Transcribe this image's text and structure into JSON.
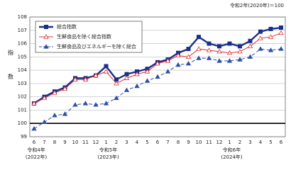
{
  "chart_data": {
    "type": "line",
    "note": "令和2年(2020年)＝100",
    "ylabel": "指数",
    "categories": [
      "6",
      "7",
      "8",
      "9",
      "10",
      "11",
      "12",
      "1",
      "2",
      "3",
      "4",
      "5",
      "6",
      "7",
      "8",
      "9",
      "10",
      "11",
      "12",
      "1",
      "2",
      "3",
      "4",
      "5",
      "6"
    ],
    "category_eras": [
      [
        "令和4年",
        "(2022年)"
      ],
      null,
      null,
      null,
      null,
      null,
      null,
      [
        "令和5年",
        "(2023年)"
      ],
      null,
      null,
      null,
      null,
      null,
      null,
      null,
      null,
      null,
      null,
      null,
      [
        "令和6年",
        "(2024年)"
      ],
      null,
      null,
      null,
      null,
      null
    ],
    "series": [
      {
        "name": "総合指数",
        "color": "#1a2f8a",
        "style": "solid",
        "width": 2.4,
        "marker": "square",
        "marker_fill": "#1a2f8a",
        "values": [
          101.5,
          102.0,
          102.4,
          102.7,
          103.4,
          103.4,
          103.6,
          104.3,
          103.3,
          103.7,
          103.9,
          104.1,
          104.6,
          104.8,
          105.3,
          105.6,
          106.5,
          106.0,
          105.8,
          106.0,
          105.8,
          106.2,
          106.9,
          107.1,
          107.2
        ]
      },
      {
        "name": "生鮮食品を除く総合指数",
        "color": "#e03030",
        "style": "solid",
        "width": 1,
        "marker": "triangle",
        "marker_fill": "#ffffff",
        "values": [
          101.5,
          101.9,
          102.3,
          102.6,
          103.3,
          103.3,
          103.6,
          103.9,
          103.0,
          103.4,
          103.7,
          103.9,
          104.5,
          104.7,
          105.1,
          105.0,
          105.6,
          105.5,
          105.4,
          105.3,
          105.4,
          105.8,
          106.4,
          106.5,
          106.8
        ]
      },
      {
        "name": "生鮮食品及びエネルギーを除く総合",
        "color": "#2f4fa8",
        "style": "dashed",
        "width": 1,
        "marker": "triangle",
        "marker_fill": "#2f4fa8",
        "values": [
          99.6,
          100.1,
          100.6,
          100.7,
          101.4,
          101.5,
          101.4,
          101.5,
          101.9,
          102.5,
          102.8,
          103.2,
          103.5,
          103.9,
          104.4,
          104.5,
          104.9,
          104.9,
          104.7,
          104.7,
          104.8,
          105.0,
          105.6,
          105.5,
          105.6
        ]
      }
    ],
    "ylim": [
      99,
      108
    ],
    "yticks": [
      99,
      100,
      101,
      102,
      103,
      104,
      105,
      106,
      107,
      108
    ],
    "grid": true,
    "reference_line": 100,
    "legend": "top-left"
  }
}
